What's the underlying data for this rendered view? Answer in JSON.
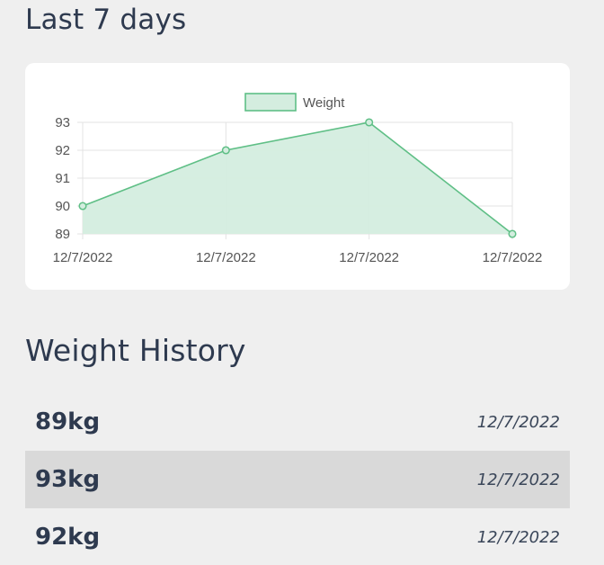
{
  "headings": {
    "last7": "Last 7 days",
    "history": "Weight History"
  },
  "colors": {
    "line": "#5fbf86",
    "fill": "#d4eddf",
    "grid": "#e3e3e3",
    "alt_row": "#d9d9d9"
  },
  "chart_data": {
    "type": "area",
    "legend_position": "top",
    "grid": true,
    "x": [
      "12/7/2022",
      "12/7/2022",
      "12/7/2022",
      "12/7/2022"
    ],
    "series": [
      {
        "name": "Weight",
        "values": [
          90,
          92,
          93,
          89
        ]
      }
    ],
    "yticks": [
      89,
      90,
      91,
      92,
      93
    ],
    "ylim": [
      89,
      93
    ]
  },
  "history": [
    {
      "weight": "89kg",
      "date": "12/7/2022"
    },
    {
      "weight": "93kg",
      "date": "12/7/2022"
    },
    {
      "weight": "92kg",
      "date": "12/7/2022"
    }
  ]
}
